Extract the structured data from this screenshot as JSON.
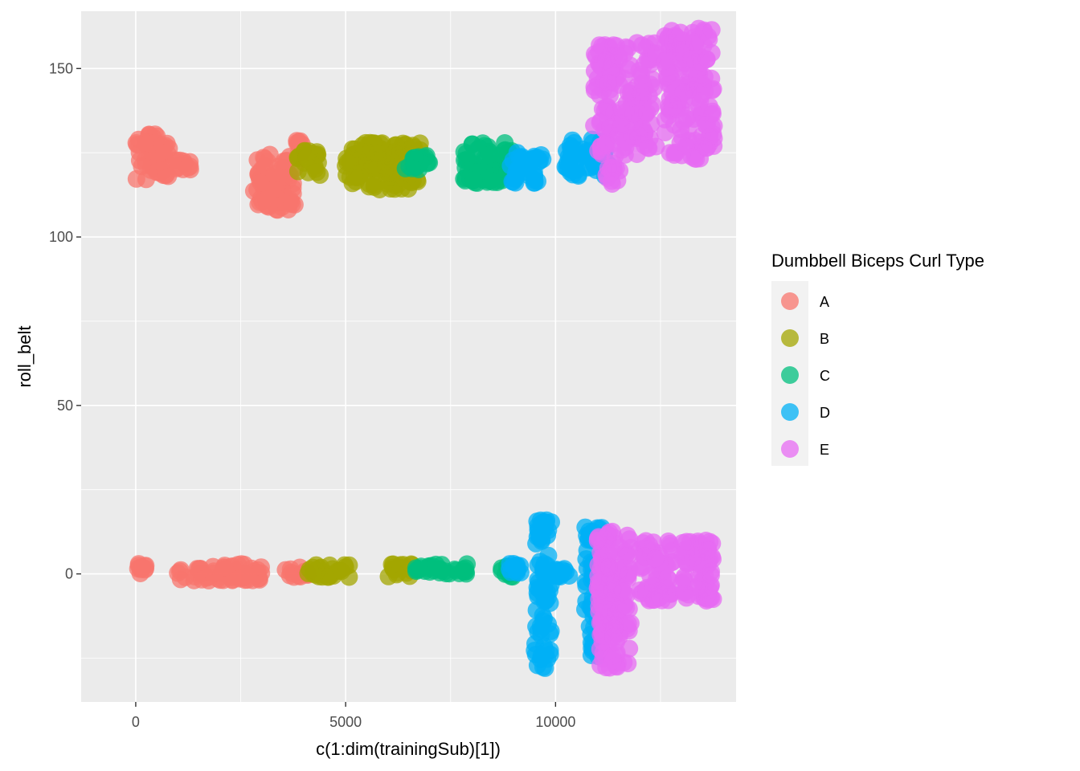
{
  "chart_data": {
    "type": "scatter",
    "xlabel": "c(1:dim(trainingSub)[1])",
    "ylabel": "roll_belt",
    "xlim": [
      -1300,
      14300
    ],
    "ylim": [
      -38,
      167
    ],
    "x_ticks": [
      0,
      5000,
      10000
    ],
    "x_tick_labels": [
      "0",
      "5000",
      "10000"
    ],
    "y_ticks": [
      0,
      50,
      100,
      150
    ],
    "y_tick_labels": [
      "0",
      "50",
      "100",
      "150"
    ],
    "grid": true,
    "legend": {
      "title": "Dumbbell Biceps Curl Type",
      "position": "right",
      "entries": [
        "A",
        "B",
        "C",
        "D",
        "E"
      ]
    },
    "series": [
      {
        "name": "A",
        "color": "#F8766D",
        "clusters": [
          {
            "x": [
              0,
              800
            ],
            "y": [
              117,
              131
            ]
          },
          {
            "x": [
              800,
              1300
            ],
            "y": [
              120,
              123
            ]
          },
          {
            "x": [
              2800,
              3800
            ],
            "y": [
              108,
              125
            ]
          },
          {
            "x": [
              3800,
              4000
            ],
            "y": [
              125,
              129
            ]
          },
          {
            "x": [
              0,
              250
            ],
            "y": [
              0,
              3
            ]
          },
          {
            "x": [
              1000,
              3000
            ],
            "y": [
              -2,
              3
            ]
          },
          {
            "x": [
              3500,
              4100
            ],
            "y": [
              -1,
              2
            ]
          }
        ]
      },
      {
        "name": "B",
        "color": "#A3A500",
        "clusters": [
          {
            "x": [
              3850,
              4400
            ],
            "y": [
              118,
              126
            ]
          },
          {
            "x": [
              5000,
              6800
            ],
            "y": [
              114,
              128
            ]
          },
          {
            "x": [
              4100,
              5100
            ],
            "y": [
              -1,
              3
            ]
          },
          {
            "x": [
              6000,
              6600
            ],
            "y": [
              -1,
              3
            ]
          }
        ]
      },
      {
        "name": "C",
        "color": "#00BF7D",
        "clusters": [
          {
            "x": [
              6400,
              7000
            ],
            "y": [
              120,
              125
            ]
          },
          {
            "x": [
              7800,
              9000
            ],
            "y": [
              116,
              128
            ]
          },
          {
            "x": [
              6600,
              7900
            ],
            "y": [
              0,
              3
            ]
          },
          {
            "x": [
              8700,
              9000
            ],
            "y": [
              -1,
              3
            ]
          }
        ]
      },
      {
        "name": "D",
        "color": "#00B0F6",
        "clusters": [
          {
            "x": [
              8900,
              9700
            ],
            "y": [
              116,
              125
            ]
          },
          {
            "x": [
              10200,
              11300
            ],
            "y": [
              118,
              129
            ]
          },
          {
            "x": [
              9500,
              9900
            ],
            "y": [
              -28,
              16
            ]
          },
          {
            "x": [
              8900,
              9200
            ],
            "y": [
              0,
              3
            ]
          },
          {
            "x": [
              9900,
              10400
            ],
            "y": [
              -1,
              2
            ]
          },
          {
            "x": [
              10700,
              11100
            ],
            "y": [
              -25,
              15
            ]
          }
        ]
      },
      {
        "name": "E",
        "color": "#E76BF3",
        "clusters": [
          {
            "x": [
              10900,
              12400
            ],
            "y": [
              124,
              158
            ]
          },
          {
            "x": [
              11200,
              11600
            ],
            "y": [
              115,
              122
            ]
          },
          {
            "x": [
              12600,
              13800
            ],
            "y": [
              123,
              162
            ]
          },
          {
            "x": [
              11000,
              11800
            ],
            "y": [
              -28,
              13
            ]
          },
          {
            "x": [
              12000,
              12800
            ],
            "y": [
              -8,
              10
            ]
          },
          {
            "x": [
              13000,
              13800
            ],
            "y": [
              -8,
              11
            ]
          }
        ]
      }
    ]
  }
}
